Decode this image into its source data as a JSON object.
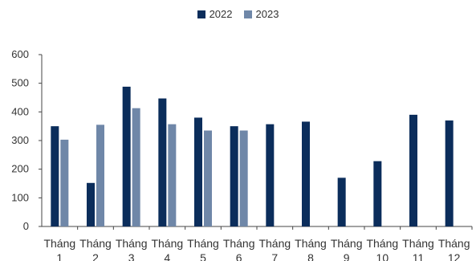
{
  "chart_data": {
    "type": "bar",
    "title": "",
    "xlabel": "",
    "ylabel": "",
    "ylim": [
      0,
      600
    ],
    "yticks": [
      0,
      100,
      200,
      300,
      400,
      500,
      600
    ],
    "grid": false,
    "legend_position": "top-center",
    "categories": [
      [
        "Tháng",
        "1"
      ],
      [
        "Tháng",
        "2"
      ],
      [
        "Tháng",
        "3"
      ],
      [
        "Tháng",
        "4"
      ],
      [
        "Tháng",
        "5"
      ],
      [
        "Tháng",
        "6"
      ],
      [
        "Tháng",
        "7"
      ],
      [
        "Tháng",
        "8"
      ],
      [
        "Tháng",
        "9"
      ],
      [
        "Tháng",
        "10"
      ],
      [
        "Tháng",
        "11"
      ],
      [
        "Tháng",
        "12"
      ]
    ],
    "series": [
      {
        "name": "2022",
        "color": "#0b2d5b",
        "values": [
          350,
          152,
          488,
          447,
          380,
          350,
          357,
          366,
          170,
          228,
          390,
          370
        ]
      },
      {
        "name": "2023",
        "color": "#6f87a8",
        "values": [
          303,
          355,
          413,
          357,
          335,
          335,
          null,
          null,
          null,
          null,
          null,
          null
        ]
      }
    ]
  }
}
